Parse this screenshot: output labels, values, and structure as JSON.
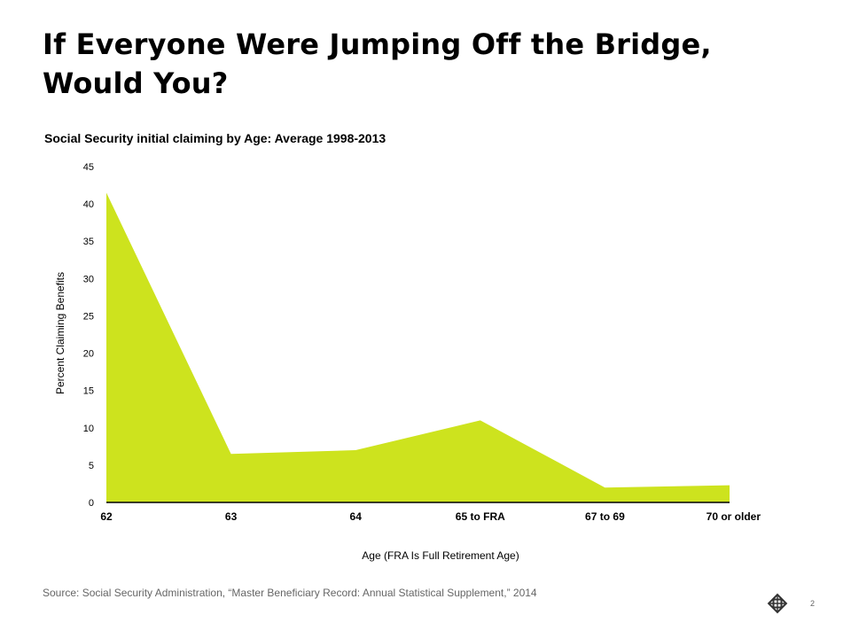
{
  "slide": {
    "title_line1": "If Everyone Were Jumping Off the Bridge,",
    "title_line2": "Would You?",
    "source": "Source: Social Security Administration, “Master Beneficiary Record:  Annual Statistical Supplement,” 2014",
    "page_number": "2"
  },
  "colors": {
    "area_fill": "#cde31e",
    "axis": "#000000",
    "text": "#000000",
    "muted_text": "#666666",
    "logo": "#333333"
  },
  "logo": {
    "icon": "interlocking-squares-logo-icon"
  },
  "chart_data": {
    "type": "area",
    "title": "Social Security initial claiming by Age: Average 1998-2013",
    "xlabel": "Age (FRA Is Full Retirement Age)",
    "ylabel": "Percent Claiming Benefits",
    "categories": [
      "62",
      "63",
      "64",
      "65 to FRA",
      "67 to 69",
      "70 or older"
    ],
    "series": [
      {
        "values": [
          41.5,
          6.5,
          7.0,
          11.0,
          2.0,
          2.3
        ]
      }
    ],
    "ylim": [
      0,
      45
    ],
    "yticks": [
      0,
      5,
      10,
      15,
      20,
      25,
      30,
      35,
      40,
      45
    ],
    "grid": false,
    "legend": "none"
  }
}
